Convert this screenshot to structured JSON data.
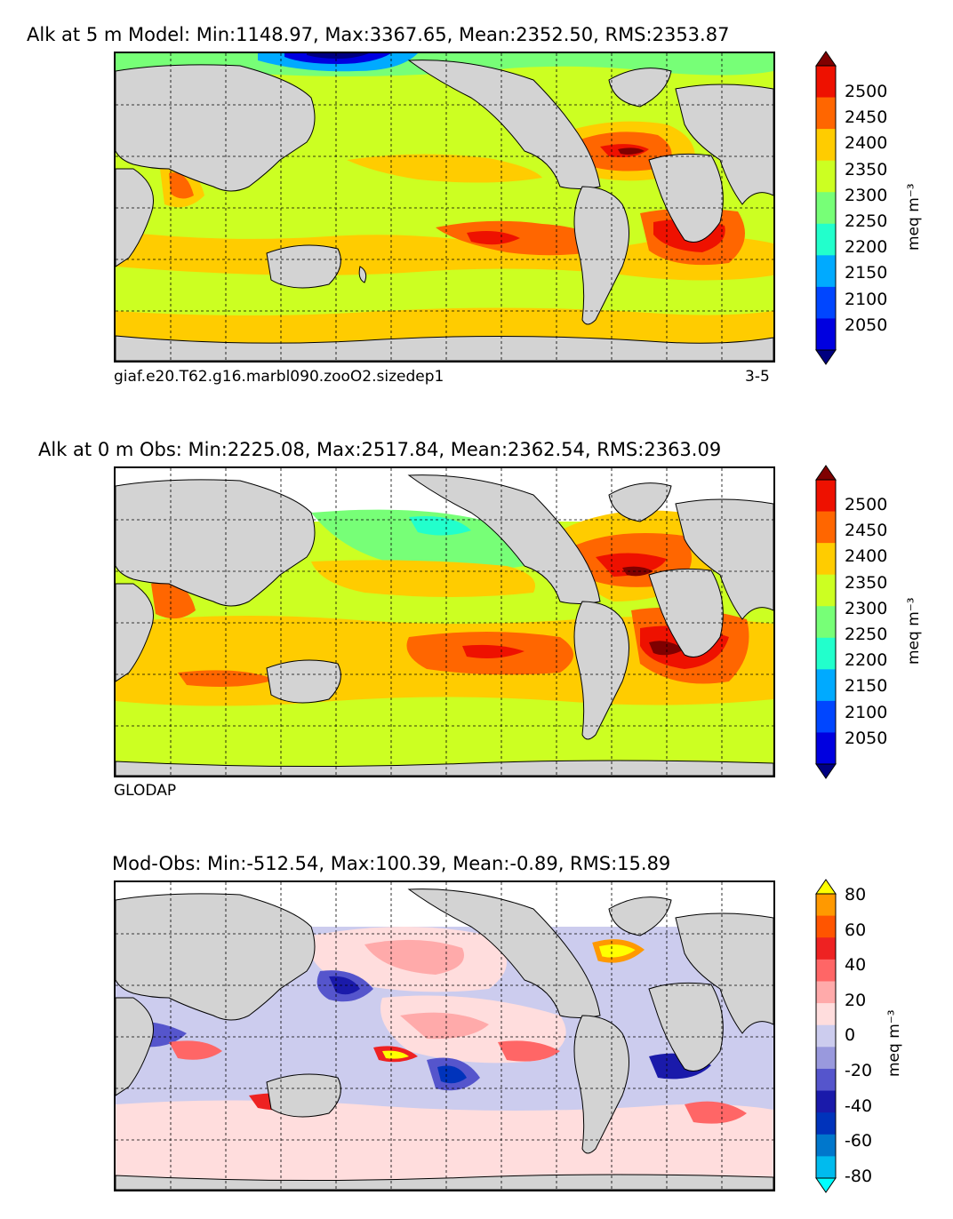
{
  "panels": [
    {
      "id": "model",
      "title": "Alk at 5 m Model: Min:1148.97, Max:3367.65, Mean:2352.50, RMS:2353.87",
      "caption_left": "giaf.e20.T62.g16.marbl090.zooO2.sizedep1",
      "caption_right": "3-5",
      "colorbar": {
        "unit": "meq m⁻³",
        "ticks": [
          "2500",
          "2450",
          "2400",
          "2350",
          "2300",
          "2250",
          "2200",
          "2150",
          "2100",
          "2050"
        ],
        "colors": [
          "#000080",
          "#0000e0",
          "#0046ff",
          "#00aaff",
          "#22ffcc",
          "#77ff77",
          "#ccff22",
          "#ffcc00",
          "#ff6600",
          "#ee1100",
          "#7f0000"
        ]
      }
    },
    {
      "id": "obs",
      "title": "Alk at 0 m Obs: Min:2225.08, Max:2517.84, Mean:2362.54, RMS:2363.09",
      "caption_left": "GLODAP",
      "colorbar": {
        "unit": "meq m⁻³",
        "ticks": [
          "2500",
          "2450",
          "2400",
          "2350",
          "2300",
          "2250",
          "2200",
          "2150",
          "2100",
          "2050"
        ],
        "colors": [
          "#000080",
          "#0000e0",
          "#0046ff",
          "#00aaff",
          "#22ffcc",
          "#77ff77",
          "#ccff22",
          "#ffcc00",
          "#ff6600",
          "#ee1100",
          "#7f0000"
        ]
      }
    },
    {
      "id": "diff",
      "title": "Mod-Obs: Min:-512.54, Max:100.39, Mean:-0.89, RMS:15.89",
      "colorbar": {
        "unit": "meq m⁻³",
        "ticks": [
          "80",
          "60",
          "40",
          "20",
          "0",
          "-20",
          "-40",
          "-60",
          "-80"
        ],
        "colors": [
          "#00ffff",
          "#00bbee",
          "#0077cc",
          "#0033bb",
          "#1a1aaa",
          "#5555cc",
          "#9999dd",
          "#ccccee",
          "#ffdddd",
          "#ffaaaa",
          "#ff6666",
          "#ee2222",
          "#ff5500",
          "#ff9900",
          "#ffff00"
        ]
      }
    }
  ],
  "colors": {
    "land": "#d3d3d3",
    "unsampled": "#ffffff",
    "grid": "#000000"
  }
}
